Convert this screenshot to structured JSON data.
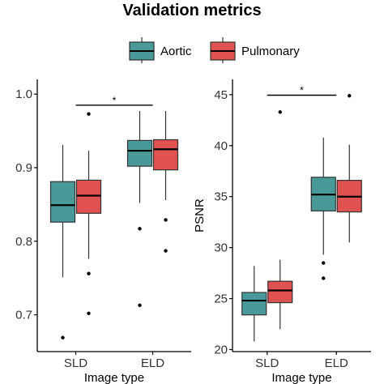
{
  "title": "Validation metrics",
  "colors": {
    "aortic": "#4a9999",
    "pulmonary": "#e05252"
  },
  "chart_data": [
    {
      "type": "box",
      "xlabel": "Image type",
      "ylabel": "",
      "ylim": [
        0.65,
        1.02
      ],
      "yticks": [
        "0.7",
        "0.8",
        "0.9",
        "1.0"
      ],
      "categories": [
        "SLD",
        "ELD"
      ],
      "significance": {
        "from": "SLD",
        "to": "ELD",
        "label": "*",
        "y": 0.985
      },
      "series": [
        {
          "name": "Aortic",
          "color": "#4a9999",
          "boxes": [
            {
              "min": 0.751,
              "q1": 0.826,
              "median": 0.849,
              "q3": 0.881,
              "max": 0.931,
              "outliers": [
                0.669
              ]
            },
            {
              "min": 0.852,
              "q1": 0.902,
              "median": 0.923,
              "q3": 0.937,
              "max": 0.977,
              "outliers": [
                0.817,
                0.713
              ]
            }
          ]
        },
        {
          "name": "Pulmonary",
          "color": "#e05252",
          "boxes": [
            {
              "min": 0.776,
              "q1": 0.838,
              "median": 0.862,
              "q3": 0.883,
              "max": 0.923,
              "outliers": [
                0.973,
                0.756,
                0.702
              ]
            },
            {
              "min": 0.856,
              "q1": 0.897,
              "median": 0.925,
              "q3": 0.938,
              "max": 0.977,
              "outliers": [
                0.829,
                0.787
              ]
            }
          ]
        }
      ]
    },
    {
      "type": "box",
      "xlabel": "Image type",
      "ylabel": "PSNR",
      "ylim": [
        19.8,
        46.5
      ],
      "yticks": [
        "20",
        "25",
        "30",
        "35",
        "40",
        "45"
      ],
      "categories": [
        "SLD",
        "ELD"
      ],
      "significance": {
        "from": "SLD",
        "to": "ELD",
        "label": "*",
        "y": 44.95
      },
      "series": [
        {
          "name": "Aortic",
          "color": "#4a9999",
          "boxes": [
            {
              "min": 20.8,
              "q1": 23.4,
              "median": 24.8,
              "q3": 25.6,
              "max": 28.2,
              "outliers": []
            },
            {
              "min": 29.3,
              "q1": 33.6,
              "median": 35.2,
              "q3": 36.9,
              "max": 40.8,
              "outliers": [
                28.5,
                27.0
              ]
            }
          ]
        },
        {
          "name": "Pulmonary",
          "color": "#e05252",
          "boxes": [
            {
              "min": 22.0,
              "q1": 24.6,
              "median": 25.8,
              "q3": 26.7,
              "max": 28.8,
              "outliers": [
                43.3
              ]
            },
            {
              "min": 30.5,
              "q1": 33.5,
              "median": 35.0,
              "q3": 36.6,
              "max": 40.1,
              "outliers": [
                44.9
              ]
            }
          ]
        }
      ]
    }
  ]
}
